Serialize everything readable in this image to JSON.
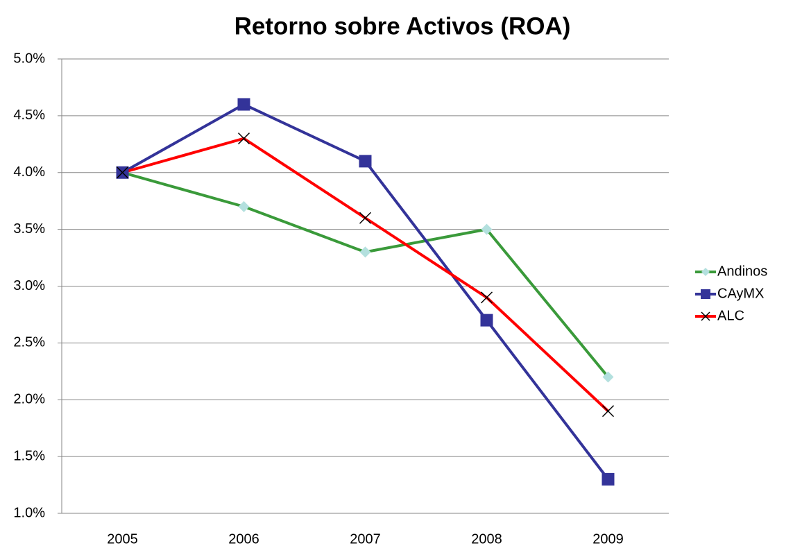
{
  "chart_data": {
    "type": "line",
    "title": "Retorno sobre Activos (ROA)",
    "categories": [
      "2005",
      "2006",
      "2007",
      "2008",
      "2009"
    ],
    "series": [
      {
        "name": "Andinos",
        "color": "#3a9a3a",
        "marker": "diamond",
        "marker_color": "#b3e0de",
        "values": [
          4.0,
          3.7,
          3.3,
          3.5,
          2.2
        ]
      },
      {
        "name": "CAyMX",
        "color": "#333399",
        "marker": "square",
        "marker_color": "#333399",
        "values": [
          4.0,
          4.6,
          4.1,
          2.7,
          1.3
        ]
      },
      {
        "name": "ALC",
        "color": "#ff0000",
        "marker": "x",
        "marker_color": "#000000",
        "values": [
          4.0,
          4.3,
          3.6,
          2.9,
          1.9
        ]
      }
    ],
    "ylim": [
      1.0,
      5.0
    ],
    "yticks": [
      {
        "value": 1.0,
        "label": "1.0%"
      },
      {
        "value": 1.5,
        "label": "1.5%"
      },
      {
        "value": 2.0,
        "label": "2.0%"
      },
      {
        "value": 2.5,
        "label": "2.5%"
      },
      {
        "value": 3.0,
        "label": "3.0%"
      },
      {
        "value": 3.5,
        "label": "3.5%"
      },
      {
        "value": 4.0,
        "label": "4.0%"
      },
      {
        "value": 4.5,
        "label": "4.5%"
      },
      {
        "value": 5.0,
        "label": "5.0%"
      }
    ],
    "grid": true,
    "legend": "right"
  }
}
